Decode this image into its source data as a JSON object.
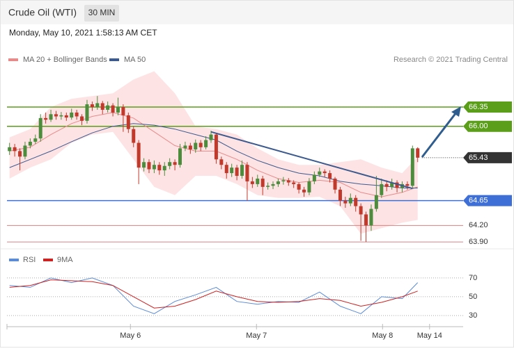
{
  "header": {
    "title": "Crude Oil (WTI)",
    "timeframe": "30 MIN",
    "date": "Monday, May 10, 2021 1:58:13 AM CET"
  },
  "chart_data": [
    {
      "type": "candlestick",
      "credit": "Research © 2021 Trading Central",
      "up_color": "#4c8c3c",
      "down_color": "#c0392b",
      "xlim": [
        -0.5,
        87.8
      ],
      "ylim": [
        63.8,
        67.1
      ],
      "x": [
        0,
        1,
        2,
        3,
        4,
        5,
        6,
        7,
        8,
        9,
        10,
        11,
        12,
        13,
        14,
        15,
        16,
        17,
        18,
        19,
        20,
        21,
        22,
        23,
        24,
        25,
        26,
        27,
        28,
        29,
        30,
        31,
        32,
        33,
        34,
        35,
        36,
        37,
        38,
        39,
        40,
        41,
        42,
        43,
        44,
        45,
        46,
        47,
        48,
        49,
        50,
        51,
        52,
        53,
        54,
        55,
        56,
        57,
        58,
        59,
        60,
        61,
        62,
        63,
        64,
        65,
        66,
        67,
        68,
        69,
        70,
        71,
        72,
        73,
        74,
        75,
        76,
        77,
        78,
        79
      ],
      "open": [
        65.55,
        65.62,
        65.55,
        65.45,
        65.65,
        65.72,
        65.78,
        66.15,
        66.12,
        66.22,
        66.18,
        66.2,
        66.16,
        66.25,
        66.18,
        66.1,
        66.4,
        66.35,
        66.42,
        66.3,
        66.38,
        66.25,
        66.35,
        66.2,
        65.95,
        65.7,
        65.25,
        65.35,
        65.22,
        65.3,
        65.2,
        65.28,
        65.35,
        65.3,
        65.6,
        65.65,
        65.58,
        65.7,
        65.62,
        65.75,
        65.85,
        65.4,
        65.3,
        65.15,
        65.25,
        65.1,
        65.3,
        65.0,
        64.95,
        65.05,
        64.9,
        64.92,
        64.95,
        65.0,
        65.02,
        64.98,
        64.95,
        64.85,
        64.8,
        65.0,
        65.12,
        65.18,
        65.15,
        65.05,
        64.85,
        64.65,
        64.6,
        64.7,
        64.55,
        64.4,
        64.2,
        64.5,
        64.75,
        64.95,
        64.9,
        64.98,
        64.88,
        64.95,
        64.92,
        65.6
      ],
      "high": [
        65.7,
        65.68,
        65.6,
        65.72,
        65.78,
        65.85,
        66.22,
        66.25,
        66.3,
        66.28,
        66.26,
        66.25,
        66.32,
        66.3,
        66.22,
        66.48,
        66.45,
        66.55,
        66.46,
        66.45,
        66.42,
        66.52,
        66.4,
        66.25,
        66.0,
        65.75,
        65.42,
        65.4,
        65.38,
        65.35,
        65.35,
        65.42,
        65.4,
        65.68,
        65.72,
        65.7,
        65.76,
        65.75,
        65.82,
        65.92,
        65.88,
        65.45,
        65.35,
        65.32,
        65.3,
        65.38,
        65.35,
        65.08,
        65.12,
        65.1,
        64.98,
        65.0,
        65.05,
        65.08,
        65.06,
        65.02,
        64.98,
        64.9,
        65.06,
        65.18,
        65.25,
        65.22,
        65.2,
        65.08,
        64.9,
        64.72,
        64.78,
        64.75,
        64.6,
        64.45,
        64.58,
        65.1,
        65.05,
        65.02,
        65.05,
        65.02,
        65.0,
        65.0,
        65.65,
        65.62
      ],
      "low": [
        65.48,
        65.45,
        65.2,
        65.4,
        65.6,
        65.68,
        65.72,
        66.05,
        66.08,
        66.12,
        66.12,
        66.1,
        66.12,
        66.12,
        66.02,
        66.05,
        66.28,
        66.3,
        66.22,
        66.25,
        66.18,
        66.2,
        65.9,
        65.88,
        65.62,
        64.95,
        65.18,
        65.15,
        65.15,
        65.12,
        65.1,
        65.22,
        65.2,
        65.25,
        65.55,
        65.5,
        65.52,
        65.55,
        65.58,
        65.7,
        65.32,
        65.22,
        65.05,
        65.08,
        65.02,
        65.05,
        64.65,
        64.88,
        64.9,
        64.75,
        64.85,
        64.86,
        64.9,
        64.94,
        64.92,
        64.88,
        64.78,
        64.72,
        64.75,
        64.95,
        65.08,
        65.08,
        64.98,
        64.78,
        64.55,
        64.52,
        64.55,
        64.45,
        63.92,
        63.9,
        64.1,
        64.45,
        64.7,
        64.82,
        64.85,
        64.8,
        64.8,
        64.85,
        64.88,
        65.35
      ],
      "close": [
        65.62,
        65.55,
        65.45,
        65.65,
        65.72,
        65.78,
        66.15,
        66.12,
        66.22,
        66.18,
        66.2,
        66.16,
        66.25,
        66.18,
        66.1,
        66.4,
        66.35,
        66.42,
        66.3,
        66.38,
        66.25,
        66.35,
        66.2,
        65.95,
        65.7,
        65.25,
        65.35,
        65.22,
        65.3,
        65.2,
        65.28,
        65.35,
        65.3,
        65.6,
        65.65,
        65.58,
        65.7,
        65.62,
        65.75,
        65.85,
        65.4,
        65.3,
        65.15,
        65.25,
        65.1,
        65.3,
        65.0,
        64.95,
        65.05,
        64.9,
        64.92,
        64.95,
        65.0,
        65.02,
        64.98,
        64.95,
        64.85,
        64.8,
        65.0,
        65.12,
        65.18,
        65.15,
        65.05,
        64.85,
        64.65,
        64.6,
        64.7,
        64.55,
        64.4,
        64.2,
        64.5,
        64.75,
        64.95,
        64.9,
        64.98,
        64.88,
        64.95,
        64.92,
        65.6,
        65.43
      ],
      "series": [
        {
          "name": "MA 20 + Bollinger Bands",
          "color": "#e88a8a",
          "band_color": "#fde3e3",
          "x": [
            0,
            4,
            8,
            12,
            16,
            20,
            24,
            28,
            32,
            36,
            40,
            44,
            48,
            52,
            56,
            60,
            64,
            68,
            72,
            76,
            79
          ],
          "values": [
            65.55,
            65.62,
            65.85,
            66.05,
            66.18,
            66.25,
            66.15,
            65.9,
            65.65,
            65.55,
            65.55,
            65.4,
            65.2,
            65.05,
            64.98,
            65.02,
            64.98,
            64.8,
            64.72,
            64.8,
            64.9
          ],
          "upper": [
            65.8,
            65.95,
            66.35,
            66.5,
            66.55,
            66.6,
            66.85,
            67.0,
            66.6,
            66.0,
            65.95,
            65.85,
            65.6,
            65.4,
            65.3,
            65.3,
            65.35,
            65.4,
            65.25,
            65.15,
            65.45
          ],
          "lower": [
            65.05,
            65.25,
            65.4,
            65.7,
            65.85,
            65.9,
            65.4,
            64.9,
            64.75,
            65.1,
            65.1,
            64.95,
            64.75,
            64.7,
            64.7,
            64.72,
            64.55,
            64.05,
            64.15,
            64.25,
            64.3
          ]
        },
        {
          "name": "MA 50",
          "color": "#3d5a8f",
          "x": [
            0,
            4,
            8,
            12,
            16,
            20,
            24,
            28,
            32,
            36,
            40,
            44,
            48,
            52,
            56,
            60,
            64,
            68,
            72,
            76,
            79
          ],
          "values": [
            65.25,
            65.4,
            65.55,
            65.72,
            65.88,
            66.0,
            66.05,
            66.02,
            65.95,
            65.85,
            65.75,
            65.55,
            65.38,
            65.25,
            65.15,
            65.1,
            65.0,
            64.95,
            64.92,
            64.88,
            64.88
          ]
        }
      ],
      "trendline": {
        "color": "#3d5a8f",
        "x": [
          39,
          78
        ],
        "values": [
          65.9,
          64.87
        ]
      },
      "levels": [
        {
          "value": 66.35,
          "label": "66.35",
          "color": "#5a9e1a",
          "boxed": true,
          "dotted": false
        },
        {
          "value": 66.0,
          "label": "66.00",
          "color": "#5a9e1a",
          "boxed": true,
          "dotted": false
        },
        {
          "value": 65.43,
          "label": "65.43",
          "color": "#333333",
          "boxed": true,
          "dotted": true
        },
        {
          "value": 64.65,
          "label": "64.65",
          "color": "#3d6fd6",
          "boxed": true,
          "dotted": false
        },
        {
          "value": 64.2,
          "label": "64.20",
          "color": "#d98080",
          "boxed": false,
          "dotted": false
        },
        {
          "value": 63.9,
          "label": "63.90",
          "color": "#d98080",
          "boxed": false,
          "dotted": false
        }
      ]
    },
    {
      "type": "line",
      "xlim": [
        -0.5,
        87.8
      ],
      "ylim": [
        20,
        81
      ],
      "yticks": [
        30,
        50,
        70
      ],
      "grid": true,
      "xticks": [
        {
          "value": 23.4,
          "label": "May 6"
        },
        {
          "value": 47.8,
          "label": "May 7"
        },
        {
          "value": 72.2,
          "label": "May 8"
        },
        {
          "value": 81.3,
          "label": "May 14"
        }
      ],
      "series": [
        {
          "name": "RSI",
          "color": "#5b8ad6",
          "x": [
            0,
            4,
            8,
            12,
            16,
            20,
            24,
            28,
            32,
            36,
            40,
            44,
            48,
            52,
            56,
            60,
            64,
            68,
            72,
            76,
            79
          ],
          "values": [
            62,
            60,
            70,
            65,
            70,
            62,
            40,
            32,
            45,
            52,
            60,
            45,
            42,
            45,
            44,
            55,
            40,
            32,
            50,
            48,
            65
          ]
        },
        {
          "name": "9MA",
          "color": "#cc2222",
          "x": [
            0,
            4,
            8,
            12,
            16,
            20,
            24,
            28,
            32,
            36,
            40,
            44,
            48,
            52,
            56,
            60,
            64,
            68,
            72,
            76,
            79
          ],
          "values": [
            60,
            62,
            68,
            67,
            66,
            62,
            50,
            38,
            40,
            47,
            56,
            50,
            45,
            44,
            45,
            48,
            46,
            40,
            44,
            50,
            56
          ]
        }
      ]
    }
  ]
}
